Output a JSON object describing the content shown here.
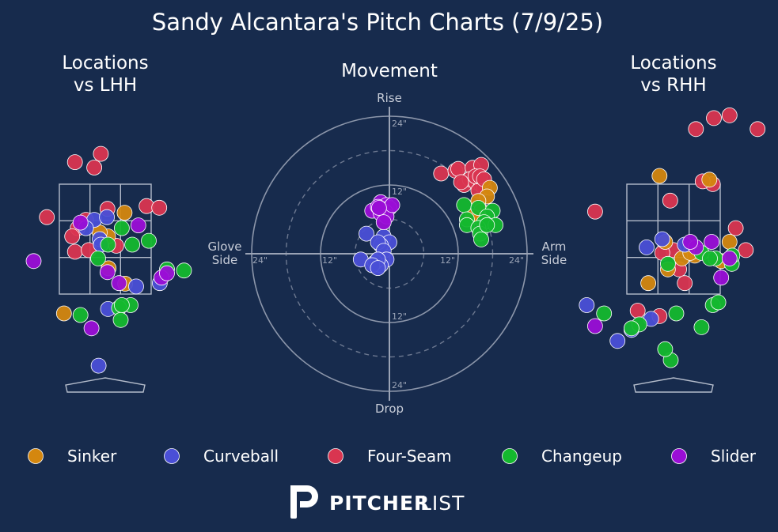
{
  "title": "Sandy Alcantara's Pitch Charts (7/9/25)",
  "brand": {
    "name_bold": "PITCHER",
    "name_light": "LIST"
  },
  "colors": {
    "background": "#172b4d",
    "Sinker": "#d4870f",
    "Curveball": "#4a4fd6",
    "Four-Seam": "#d93550",
    "Changeup": "#14b82e",
    "Slider": "#9a0ed6"
  },
  "chart_data": [
    {
      "type": "scatter",
      "title": "Locations\nvs LHH",
      "series": [
        {
          "name": "Four-Seam",
          "points": [
            [
              -0.55,
              3.9
            ],
            [
              -0.08,
              4.05
            ],
            [
              -0.2,
              3.8
            ],
            [
              0.04,
              3.05
            ],
            [
              0.75,
              3.1
            ],
            [
              0.98,
              3.07
            ],
            [
              -1.06,
              2.9
            ],
            [
              -0.35,
              2.85
            ],
            [
              -0.5,
              2.7
            ],
            [
              -0.6,
              2.55
            ],
            [
              0.2,
              2.38
            ],
            [
              -0.55,
              2.27
            ],
            [
              -0.3,
              2.3
            ]
          ]
        },
        {
          "name": "Sinker",
          "points": [
            [
              -1.7,
              2.53
            ],
            [
              0.35,
              2.98
            ],
            [
              0.05,
              2.55
            ],
            [
              0.06,
              1.97
            ],
            [
              0.36,
              1.69
            ],
            [
              -0.75,
              1.15
            ],
            [
              -0.1,
              2.62
            ]
          ]
        },
        {
          "name": "Curveball",
          "points": [
            [
              -0.2,
              2.85
            ],
            [
              0.03,
              2.9
            ],
            [
              -0.1,
              2.5
            ],
            [
              -0.08,
              2.4
            ],
            [
              -1.97,
              1.25
            ],
            [
              -1.6,
              1.05
            ],
            [
              0.05,
              1.23
            ],
            [
              0.99,
              1.7
            ],
            [
              0.56,
              1.64
            ],
            [
              -0.12,
              0.2
            ],
            [
              -0.35,
              2.7
            ]
          ]
        },
        {
          "name": "Changeup",
          "points": [
            [
              0.3,
              2.7
            ],
            [
              0.79,
              2.47
            ],
            [
              0.49,
              2.4
            ],
            [
              -0.13,
              2.15
            ],
            [
              0.46,
              1.3
            ],
            [
              -0.45,
              1.12
            ],
            [
              1.12,
              1.95
            ],
            [
              0.25,
              1.25
            ],
            [
              0.3,
              1.3
            ],
            [
              0.28,
              1.03
            ],
            [
              1.43,
              1.93
            ],
            [
              0.05,
              2.4
            ]
          ]
        },
        {
          "name": "Slider",
          "points": [
            [
              -0.45,
              2.8
            ],
            [
              0.6,
              2.75
            ],
            [
              -1.3,
              2.1
            ],
            [
              0.04,
              1.9
            ],
            [
              0.25,
              1.7
            ],
            [
              1.02,
              1.8
            ],
            [
              1.12,
              1.88
            ],
            [
              -0.25,
              0.88
            ]
          ]
        }
      ]
    },
    {
      "type": "scatter",
      "title": "Movement",
      "axis_labels": {
        "top": "Rise",
        "bottom": "Drop",
        "left": "Glove\nSide",
        "right": "Arm\nSide"
      },
      "ring_labels": [
        "12\"",
        "24\""
      ],
      "series": [
        {
          "name": "Four-Seam",
          "points": [
            [
              9,
              14
            ],
            [
              11.5,
              14.5
            ],
            [
              12,
              14.8
            ],
            [
              14.5,
              15
            ],
            [
              15.5,
              13
            ],
            [
              16,
              15.5
            ],
            [
              13,
              12
            ],
            [
              14,
              13
            ],
            [
              15,
              12.5
            ],
            [
              16,
              12
            ],
            [
              16.5,
              11.5
            ],
            [
              15.5,
              11
            ],
            [
              15,
              13.5
            ],
            [
              12.5,
              12.5
            ],
            [
              15.8,
              13.5
            ],
            [
              16.5,
              13
            ]
          ]
        },
        {
          "name": "Sinker",
          "points": [
            [
              17.5,
              11.5
            ],
            [
              17,
              10
            ],
            [
              15.5,
              9.2
            ],
            [
              16,
              7.5
            ],
            [
              15.7,
              6.2
            ],
            [
              14.5,
              6.5
            ]
          ]
        },
        {
          "name": "Curveball",
          "points": [
            [
              -4,
              3.5
            ],
            [
              -1,
              3
            ],
            [
              0,
              2
            ],
            [
              -1.5,
              1.5
            ],
            [
              -2,
              2
            ],
            [
              -1,
              0.5
            ],
            [
              -0.5,
              -1
            ],
            [
              -1.5,
              -2
            ],
            [
              -2.5,
              -1.5
            ],
            [
              -2,
              -1
            ],
            [
              -5,
              -1
            ],
            [
              -3,
              -2
            ],
            [
              -2,
              -2.5
            ]
          ]
        },
        {
          "name": "Changeup",
          "points": [
            [
              13,
              8.5
            ],
            [
              15.5,
              8
            ],
            [
              18,
              7.5
            ],
            [
              17,
              6.5
            ],
            [
              16.5,
              5.5
            ],
            [
              13.5,
              6
            ],
            [
              18.5,
              5
            ],
            [
              13.5,
              5
            ],
            [
              15.5,
              4.5
            ],
            [
              15.8,
              3.5
            ],
            [
              16,
              2.5
            ],
            [
              17,
              5
            ]
          ]
        },
        {
          "name": "Slider",
          "points": [
            [
              -1.5,
              9
            ],
            [
              -0.5,
              8.5
            ],
            [
              0,
              8
            ],
            [
              -3,
              7.5
            ],
            [
              -0.7,
              7.3
            ],
            [
              -1.5,
              7
            ],
            [
              -0.5,
              6.5
            ],
            [
              -1,
              5.5
            ],
            [
              0.5,
              8.5
            ],
            [
              -2,
              8.2
            ],
            [
              -1.8,
              8
            ]
          ]
        }
      ]
    },
    {
      "type": "scatter",
      "title": "Locations\nvs RHH",
      "series": [
        {
          "name": "Four-Seam",
          "points": [
            [
              0.4,
              4.5
            ],
            [
              0.72,
              4.7
            ],
            [
              1.0,
              4.75
            ],
            [
              1.5,
              4.5
            ],
            [
              2.02,
              4.25
            ],
            [
              -1.4,
              3.0
            ],
            [
              -0.06,
              3.2
            ],
            [
              0.7,
              3.5
            ],
            [
              1.11,
              2.7
            ],
            [
              1.29,
              2.3
            ],
            [
              0.0,
              2.3
            ],
            [
              -0.2,
              2.25
            ],
            [
              0.1,
              1.95
            ],
            [
              0.2,
              1.7
            ],
            [
              0.52,
              3.55
            ],
            [
              -0.64,
              1.2
            ],
            [
              -0.25,
              1.1
            ]
          ]
        },
        {
          "name": "Sinker",
          "points": [
            [
              -0.25,
              3.65
            ],
            [
              0.64,
              3.58
            ],
            [
              -0.15,
              2.45
            ],
            [
              0.15,
              2.15
            ],
            [
              0.38,
              2.2
            ],
            [
              0.85,
              2.1
            ],
            [
              1.0,
              2.45
            ],
            [
              -0.1,
              1.95
            ],
            [
              -0.45,
              1.7
            ],
            [
              0.3,
              2.25
            ]
          ]
        },
        {
          "name": "Curveball",
          "points": [
            [
              -1.9,
              2.1
            ],
            [
              -0.48,
              2.35
            ],
            [
              -0.2,
              2.5
            ],
            [
              -1.55,
              1.3
            ],
            [
              -0.75,
              0.85
            ],
            [
              -0.4,
              1.05
            ],
            [
              -1.0,
              0.65
            ],
            [
              -1.6,
              -0.1
            ],
            [
              0.2,
              2.4
            ]
          ]
        },
        {
          "name": "Changeup",
          "points": [
            [
              1.8,
              2.45
            ],
            [
              0.05,
              1.15
            ],
            [
              -1.75,
              1.4
            ],
            [
              -1.24,
              1.15
            ],
            [
              -0.61,
              0.95
            ],
            [
              -0.75,
              0.88
            ],
            [
              0.5,
              0.9
            ],
            [
              0.7,
              1.3
            ],
            [
              0.8,
              1.35
            ],
            [
              -0.05,
              0.3
            ],
            [
              -0.15,
              0.5
            ],
            [
              0.75,
              2.15
            ],
            [
              1.04,
              2.05
            ],
            [
              1.05,
              2.2
            ],
            [
              0.5,
              2.25
            ],
            [
              0.65,
              2.15
            ],
            [
              -0.1,
              2.05
            ]
          ]
        },
        {
          "name": "Slider",
          "points": [
            [
              -2.42,
              2.5
            ],
            [
              -2.4,
              2.47
            ],
            [
              -1.4,
              0.92
            ],
            [
              -2.4,
              0.35
            ],
            [
              0.4,
              2.35
            ],
            [
              0.3,
              2.45
            ],
            [
              0.68,
              2.45
            ],
            [
              1.0,
              2.15
            ],
            [
              0.85,
              1.8
            ]
          ]
        }
      ]
    }
  ],
  "legend": {
    "placement": "bottom",
    "items": [
      "Sinker",
      "Curveball",
      "Four-Seam",
      "Changeup",
      "Slider"
    ]
  }
}
